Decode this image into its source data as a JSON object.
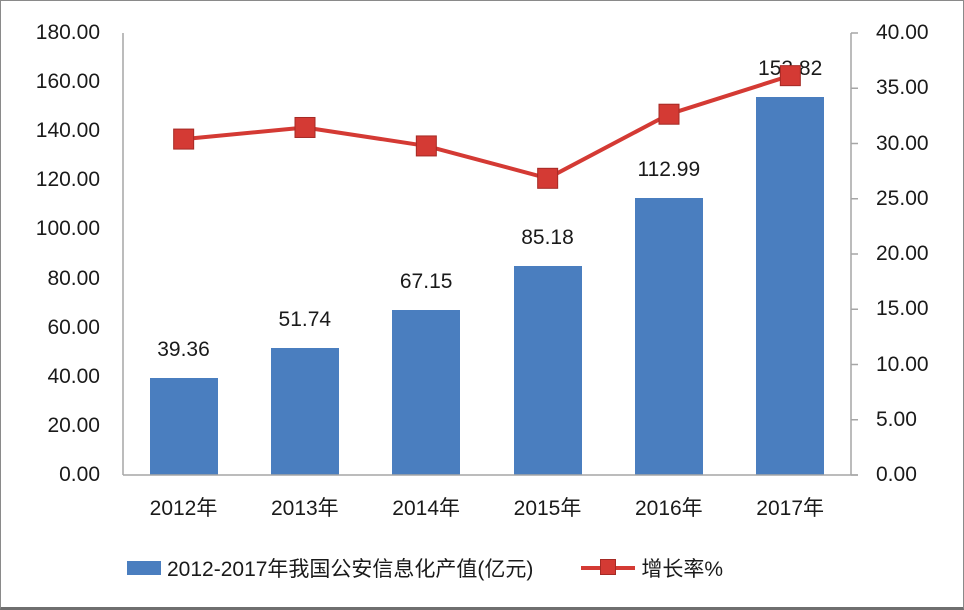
{
  "colors": {
    "bar": "#4a7ebf",
    "line": "#d43a34",
    "marker_border": "#a52a25",
    "axis": "#a6a6a6"
  },
  "chart_data": {
    "type": "bar+line",
    "title": "",
    "categories": [
      "2012年",
      "2013年",
      "2014年",
      "2015年",
      "2016年",
      "2017年"
    ],
    "series": [
      {
        "name": "2012-2017年我国公安信息化产值(亿元)",
        "type": "bar",
        "axis": "left",
        "values": [
          39.36,
          51.74,
          67.15,
          85.18,
          112.99,
          153.82
        ],
        "labels": [
          "39.36",
          "51.74",
          "67.15",
          "85.18",
          "112.99",
          "153.82"
        ]
      },
      {
        "name": "增长率%",
        "type": "line",
        "axis": "right",
        "values": [
          30.4,
          31.45,
          29.78,
          26.85,
          32.65,
          36.14
        ]
      }
    ],
    "left_axis": {
      "ylim": [
        0,
        180
      ],
      "ticks": [
        "0.00",
        "20.00",
        "40.00",
        "60.00",
        "80.00",
        "100.00",
        "120.00",
        "140.00",
        "160.00",
        "180.00"
      ]
    },
    "right_axis": {
      "ylim": [
        0,
        40
      ],
      "ticks": [
        "0.00",
        "5.00",
        "10.00",
        "15.00",
        "20.00",
        "25.00",
        "30.00",
        "35.00",
        "40.00"
      ]
    },
    "xlabel": "",
    "ylabel": "",
    "grid": false,
    "legend_position": "bottom"
  },
  "legend": {
    "bar_label": "2012-2017年我国公安信息化产值(亿元)",
    "line_label": "增长率%"
  }
}
